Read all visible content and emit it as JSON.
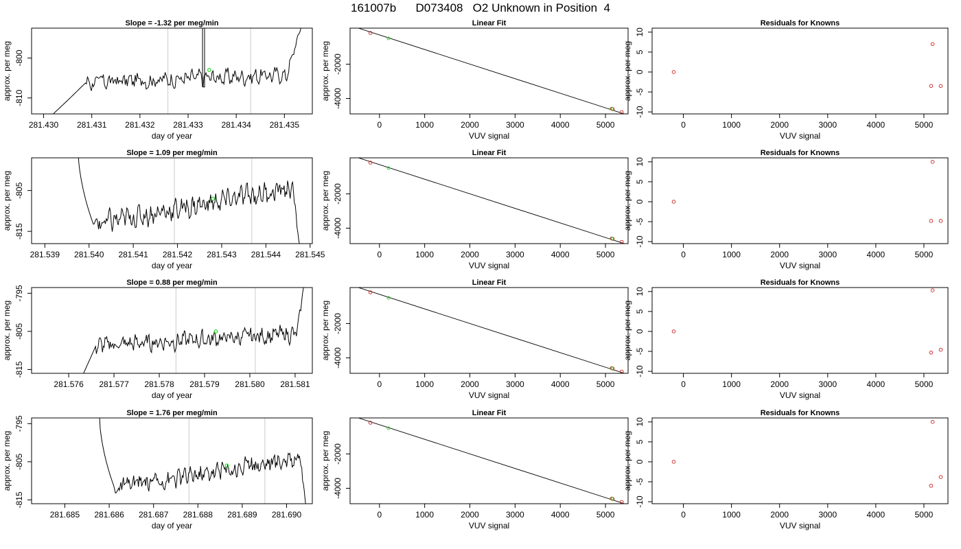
{
  "title": "161007b      D073408   O2 Unknown in Position  4",
  "colors": {
    "line": "#000000",
    "grid": "#d3d3d3",
    "known": "#cc3333",
    "unknown": "#22dd22",
    "frame": "#000000"
  },
  "chart_data": [
    {
      "type": "line",
      "row": 0,
      "panel": "time",
      "title": "Slope =  -1.32  per meg/min",
      "xlabel": "day of year",
      "ylabel": "approx. per meg",
      "xticks": [
        281.43,
        281.431,
        281.432,
        281.433,
        281.434,
        281.435
      ],
      "yticks": [
        -810,
        -800
      ],
      "xlim": [
        281.42975,
        281.43558
      ],
      "ylim": [
        -814,
        -792.5
      ],
      "vlines": [
        281.43258,
        281.4343
      ],
      "marker": [
        281.43344,
        -803.0
      ],
      "series": [
        {
          "x_start": 281.43002,
          "x_end": 281.4354,
          "spike_x": 281.4333,
          "rise_start": 281.43075,
          "rise_end": 281.43088,
          "fall_start": 281.43505,
          "level_start": -806.5,
          "level_end": -804.0,
          "noise": 1.4,
          "y_start": -816,
          "y_end": -790
        }
      ]
    },
    {
      "type": "scatter",
      "row": 0,
      "panel": "fit",
      "title": "Linear Fit",
      "xlabel": "VUV signal",
      "ylabel": "approx. per meg",
      "xticks": [
        0,
        1000,
        2000,
        3000,
        4000,
        5000
      ],
      "yticks": [
        -4000,
        -2000
      ],
      "xlim": [
        -650,
        5500
      ],
      "ylim": [
        -4900,
        100
      ],
      "line": {
        "x": [
          -560,
          5440
        ],
        "y": [
          180,
          -4920
        ]
      },
      "knowns": {
        "x": [
          -200,
          5140,
          5160,
          5360
        ],
        "y": [
          -180,
          -4600,
          -4620,
          -4800
        ]
      },
      "unknown": {
        "x": [
          200,
          5150
        ],
        "y": [
          -500,
          -4610
        ]
      }
    },
    {
      "type": "scatter",
      "row": 0,
      "panel": "resid",
      "title": "Residuals for Knowns",
      "xlabel": "VUV signal",
      "ylabel": "approx. per meg",
      "xticks": [
        0,
        1000,
        2000,
        3000,
        4000,
        5000
      ],
      "yticks": [
        -10,
        -5,
        0,
        5,
        10
      ],
      "xlim": [
        -650,
        5500
      ],
      "ylim": [
        -10.5,
        11
      ],
      "points": {
        "x": [
          -200,
          5180,
          5150,
          5350
        ],
        "y": [
          0,
          7,
          -3.5,
          -3.5
        ]
      }
    },
    {
      "type": "line",
      "row": 1,
      "panel": "time",
      "title": "Slope =  1.09  per meg/min",
      "xlabel": "day of year",
      "ylabel": "approx. per meg",
      "xticks": [
        281.539,
        281.54,
        281.541,
        281.542,
        281.543,
        281.544,
        281.545
      ],
      "yticks": [
        -815,
        -805
      ],
      "xlim": [
        281.5387,
        281.54505
      ],
      "ylim": [
        -818,
        -797
      ],
      "vlines": [
        281.54193,
        281.54368
      ],
      "marker": [
        281.5428,
        -807.0
      ],
      "series": [
        {
          "x_start": 281.53975,
          "x_end": 281.54478,
          "spike_x": null,
          "drop_start": 281.53975,
          "drop_end": 281.5401,
          "fall_start": 281.5446,
          "level_start": -814,
          "level_end": -804,
          "noise": 1.8,
          "y_start": -795,
          "y_end": -820
        }
      ]
    },
    {
      "type": "scatter",
      "row": 1,
      "panel": "fit",
      "title": "Linear Fit",
      "xlabel": "VUV signal",
      "ylabel": "approx. per meg",
      "xticks": [
        0,
        1000,
        2000,
        3000,
        4000,
        5000
      ],
      "yticks": [
        -4000,
        -2000
      ],
      "xlim": [
        -650,
        5500
      ],
      "ylim": [
        -4900,
        100
      ],
      "line": {
        "x": [
          -560,
          5440
        ],
        "y": [
          180,
          -4920
        ]
      },
      "knowns": {
        "x": [
          -200,
          5140,
          5160,
          5360
        ],
        "y": [
          -180,
          -4600,
          -4620,
          -4800
        ]
      },
      "unknown": {
        "x": [
          200,
          5150
        ],
        "y": [
          -500,
          -4610
        ]
      }
    },
    {
      "type": "scatter",
      "row": 1,
      "panel": "resid",
      "title": "Residuals for Knowns",
      "xlabel": "VUV signal",
      "ylabel": "approx. per meg",
      "xticks": [
        0,
        1000,
        2000,
        3000,
        4000,
        5000
      ],
      "yticks": [
        -10,
        -5,
        0,
        5,
        10
      ],
      "xlim": [
        -650,
        5500
      ],
      "ylim": [
        -10.5,
        11
      ],
      "points": {
        "x": [
          -200,
          5180,
          5150,
          5350
        ],
        "y": [
          0,
          10,
          -4.8,
          -4.8
        ]
      }
    },
    {
      "type": "line",
      "row": 2,
      "panel": "time",
      "title": "Slope =  0.88  per meg/min",
      "xlabel": "day of year",
      "ylabel": "approx. per meg",
      "xticks": [
        281.576,
        281.577,
        281.578,
        281.579,
        281.58,
        281.581
      ],
      "yticks": [
        -815,
        -805,
        -795
      ],
      "xlim": [
        281.57518,
        281.58138
      ],
      "ylim": [
        -816,
        -793.5
      ],
      "vlines": [
        281.57837,
        281.58012
      ],
      "marker": [
        281.57925,
        -805.0
      ],
      "series": [
        {
          "x_start": 281.57625,
          "x_end": 281.5812,
          "spike_x": null,
          "rise_start": 281.57625,
          "rise_end": 281.5766,
          "fall_start": 281.58105,
          "level_start": -809,
          "level_end": -805.5,
          "noise": 1.5,
          "y_start": -818,
          "y_end": -792
        }
      ]
    },
    {
      "type": "scatter",
      "row": 2,
      "panel": "fit",
      "title": "Linear Fit",
      "xlabel": "VUV signal",
      "ylabel": "approx. per meg",
      "xticks": [
        0,
        1000,
        2000,
        3000,
        4000,
        5000
      ],
      "yticks": [
        -4000,
        -2000
      ],
      "xlim": [
        -650,
        5500
      ],
      "ylim": [
        -4900,
        100
      ],
      "line": {
        "x": [
          -560,
          5440
        ],
        "y": [
          180,
          -4920
        ]
      },
      "knowns": {
        "x": [
          -200,
          5140,
          5160,
          5360
        ],
        "y": [
          -180,
          -4600,
          -4620,
          -4800
        ]
      },
      "unknown": {
        "x": [
          200,
          5150
        ],
        "y": [
          -500,
          -4610
        ]
      }
    },
    {
      "type": "scatter",
      "row": 2,
      "panel": "resid",
      "title": "Residuals for Knowns",
      "xlabel": "VUV signal",
      "ylabel": "approx. per meg",
      "xticks": [
        0,
        1000,
        2000,
        3000,
        4000,
        5000
      ],
      "yticks": [
        -10,
        -5,
        0,
        5,
        10
      ],
      "xlim": [
        -650,
        5500
      ],
      "ylim": [
        -10.5,
        11
      ],
      "points": {
        "x": [
          -200,
          5180,
          5150,
          5350
        ],
        "y": [
          0,
          10.3,
          -5.3,
          -4.6
        ]
      }
    },
    {
      "type": "line",
      "row": 3,
      "panel": "time",
      "title": "Slope =  1.76  per meg/min",
      "xlabel": "day of year",
      "ylabel": "approx. per meg",
      "xticks": [
        281.685,
        281.686,
        281.687,
        281.688,
        281.689,
        281.69
      ],
      "yticks": [
        -815,
        -805,
        -795
      ],
      "xlim": [
        281.68425,
        281.69058
      ],
      "ylim": [
        -816,
        -793.5
      ],
      "vlines": [
        281.6878,
        281.68951
      ],
      "marker": [
        281.68865,
        -806.0
      ],
      "series": [
        {
          "x_start": 281.68578,
          "x_end": 281.69045,
          "spike_x": null,
          "drop_start": 281.68578,
          "drop_end": 281.68612,
          "fall_start": 281.6903,
          "level_start": -812.5,
          "level_end": -803.5,
          "noise": 1.6,
          "y_start": -793,
          "y_end": -818
        }
      ]
    },
    {
      "type": "scatter",
      "row": 3,
      "panel": "fit",
      "title": "Linear Fit",
      "xlabel": "VUV signal",
      "ylabel": "approx. per meg",
      "xticks": [
        0,
        1000,
        2000,
        3000,
        4000,
        5000
      ],
      "yticks": [
        -4000,
        -2000
      ],
      "xlim": [
        -650,
        5500
      ],
      "ylim": [
        -4900,
        100
      ],
      "line": {
        "x": [
          -560,
          5440
        ],
        "y": [
          180,
          -4920
        ]
      },
      "knowns": {
        "x": [
          -200,
          5140,
          5160,
          5360
        ],
        "y": [
          -180,
          -4600,
          -4620,
          -4800
        ]
      },
      "unknown": {
        "x": [
          200,
          5150
        ],
        "y": [
          -500,
          -4610
        ]
      }
    },
    {
      "type": "scatter",
      "row": 3,
      "panel": "resid",
      "title": "Residuals for Knowns",
      "xlabel": "VUV signal",
      "ylabel": "approx. per meg",
      "xticks": [
        0,
        1000,
        2000,
        3000,
        4000,
        5000
      ],
      "yticks": [
        -10,
        -5,
        0,
        5,
        10
      ],
      "xlim": [
        -650,
        5500
      ],
      "ylim": [
        -10.5,
        11
      ],
      "points": {
        "x": [
          -200,
          5180,
          5150,
          5350
        ],
        "y": [
          0,
          10,
          -6,
          -3.8
        ]
      }
    }
  ]
}
